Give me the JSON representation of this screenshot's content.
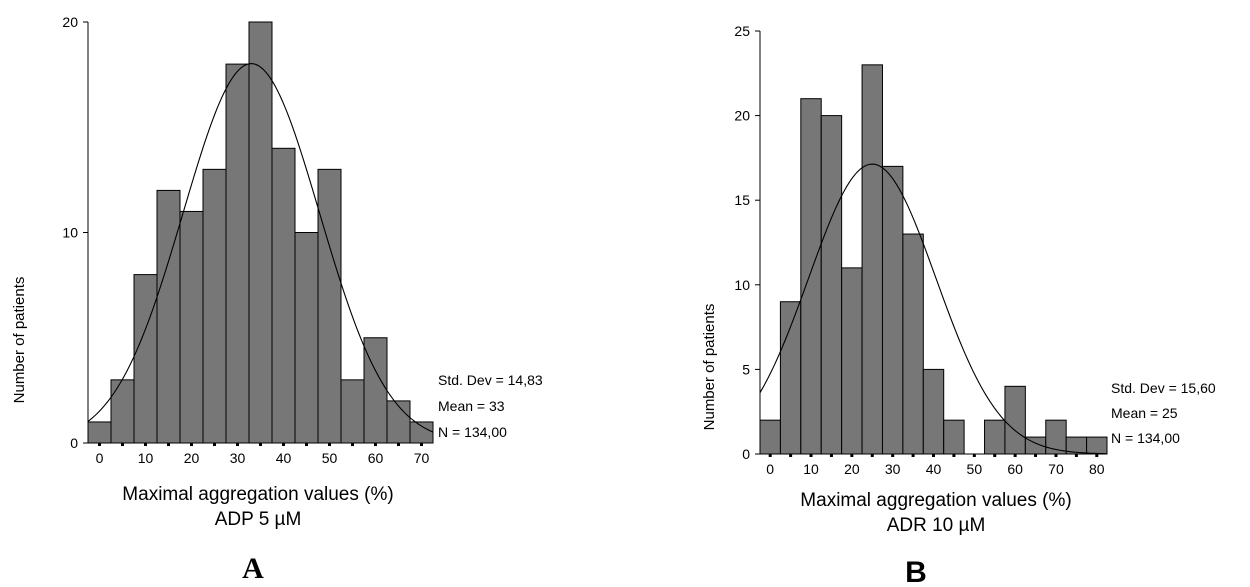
{
  "chart_data": [
    {
      "type": "bar",
      "panel_label": "A",
      "xlabel": "Maximal aggregation values (%)",
      "xlabel_line2": "ADP 5 µM",
      "ylabel": "Number of patients",
      "x_ticks": [
        "0",
        "10",
        "20",
        "30",
        "40",
        "50",
        "60",
        "70"
      ],
      "y_ticks": [
        "0",
        "10",
        "20"
      ],
      "ylim": [
        0,
        20
      ],
      "bin_width": 5,
      "bin_edges": [
        -2.5,
        2.5,
        7.5,
        12.5,
        17.5,
        22.5,
        27.5,
        32.5,
        37.5,
        42.5,
        47.5,
        52.5,
        57.5,
        62.5,
        67.5,
        72.5
      ],
      "values": [
        1,
        3,
        8,
        12,
        11,
        13,
        18,
        20,
        14,
        10,
        13,
        3,
        5,
        2,
        1
      ],
      "curve": {
        "mean": 33,
        "std": 14.83,
        "n": 134
      },
      "stats": [
        "Std. Dev = 14,83",
        "Mean = 33",
        "N = 134,00"
      ],
      "bar_color": "#777777",
      "grid": false
    },
    {
      "type": "bar",
      "panel_label": "B",
      "xlabel": "Maximal aggregation values (%)",
      "xlabel_line2": "ADR 10 µM",
      "ylabel": "Number of patients",
      "x_ticks": [
        "0",
        "10",
        "20",
        "30",
        "40",
        "50",
        "60",
        "70",
        "80"
      ],
      "y_ticks": [
        "0",
        "5",
        "10",
        "15",
        "20",
        "25"
      ],
      "ylim": [
        0,
        25
      ],
      "bin_width": 5,
      "bin_edges": [
        -2.5,
        2.5,
        7.5,
        12.5,
        17.5,
        22.5,
        27.5,
        32.5,
        37.5,
        42.5,
        47.5,
        52.5,
        57.5,
        62.5,
        67.5,
        72.5,
        77.5,
        82.5
      ],
      "values": [
        2,
        9,
        21,
        20,
        11,
        23,
        17,
        13,
        5,
        2,
        0,
        2,
        4,
        1,
        2,
        1,
        1
      ],
      "curve": {
        "mean": 25,
        "std": 15.6,
        "n": 134
      },
      "stats": [
        "Std. Dev = 15,60",
        "Mean = 25",
        "N = 134,00"
      ],
      "bar_color": "#777777",
      "grid": false
    }
  ]
}
